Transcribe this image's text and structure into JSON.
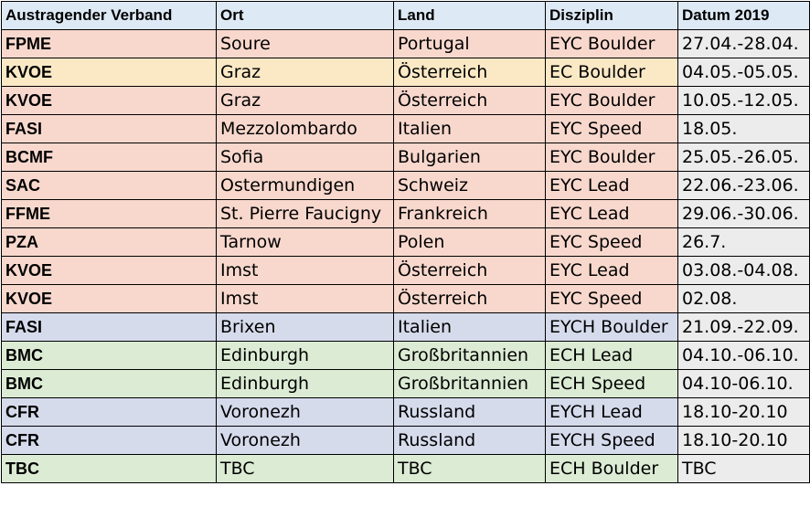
{
  "columns": [
    "Austragender Verband",
    "Ort",
    "Land",
    "Disziplin",
    "Datum 2019"
  ],
  "colors": {
    "salmon": "#f8d8cd",
    "yellow": "#fbe9c6",
    "blue": "#d6dbec",
    "green": "#dcebd4",
    "header": "#dde9f4",
    "date_column": "#ececec"
  },
  "rows": [
    {
      "verband": "FPME",
      "ort": "Soure",
      "land": "Portugal",
      "disziplin": "EYC Boulder",
      "datum": "27.04.-28.04.",
      "color": "salmon"
    },
    {
      "verband": "KVOE",
      "ort": "Graz",
      "land": "Österreich",
      "disziplin": "EC Boulder",
      "datum": "04.05.-05.05.",
      "color": "yellow"
    },
    {
      "verband": "KVOE",
      "ort": "Graz",
      "land": "Österreich",
      "disziplin": "EYC Boulder",
      "datum": "10.05.-12.05.",
      "color": "salmon"
    },
    {
      "verband": "FASI",
      "ort": "Mezzolombardo",
      "land": "Italien",
      "disziplin": "EYC Speed",
      "datum": "18.05.",
      "color": "salmon"
    },
    {
      "verband": "BCMF",
      "ort": "Sofia",
      "land": "Bulgarien",
      "disziplin": "EYC Boulder",
      "datum": "25.05.-26.05.",
      "color": "salmon"
    },
    {
      "verband": "SAC",
      "ort": "Ostermundigen",
      "land": "Schweiz",
      "disziplin": "EYC Lead",
      "datum": "22.06.-23.06.",
      "color": "salmon"
    },
    {
      "verband": "FFME",
      "ort": "St. Pierre Faucigny",
      "land": "Frankreich",
      "disziplin": "EYC Lead",
      "datum": "29.06.-30.06.",
      "color": "salmon"
    },
    {
      "verband": "PZA",
      "ort": "Tarnow",
      "land": "Polen",
      "disziplin": "EYC Speed",
      "datum": "26.7.",
      "color": "salmon"
    },
    {
      "verband": "KVOE",
      "ort": "Imst",
      "land": "Österreich",
      "disziplin": "EYC Lead",
      "datum": "03.08.-04.08.",
      "color": "salmon"
    },
    {
      "verband": "KVOE",
      "ort": "Imst",
      "land": "Österreich",
      "disziplin": "EYC Speed",
      "datum": "02.08.",
      "color": "salmon"
    },
    {
      "verband": "FASI",
      "ort": "Brixen",
      "land": "Italien",
      "disziplin": "EYCH Boulder",
      "datum": "21.09.-22.09.",
      "color": "blue"
    },
    {
      "verband": "BMC",
      "ort": "Edinburgh",
      "land": "Großbritannien",
      "disziplin": "ECH Lead",
      "datum": "04.10.-06.10.",
      "color": "green"
    },
    {
      "verband": "BMC",
      "ort": "Edinburgh",
      "land": "Großbritannien",
      "disziplin": "ECH Speed",
      "datum": "04.10-06.10.",
      "color": "green"
    },
    {
      "verband": "CFR",
      "ort": "Voronezh",
      "land": "Russland",
      "disziplin": "EYCH Lead",
      "datum": "18.10-20.10",
      "color": "blue"
    },
    {
      "verband": "CFR",
      "ort": "Voronezh",
      "land": "Russland",
      "disziplin": "EYCH Speed",
      "datum": "18.10-20.10",
      "color": "blue"
    },
    {
      "verband": "TBC",
      "ort": "TBC",
      "land": "TBC",
      "disziplin": "ECH Boulder",
      "datum": "TBC",
      "color": "green"
    }
  ]
}
